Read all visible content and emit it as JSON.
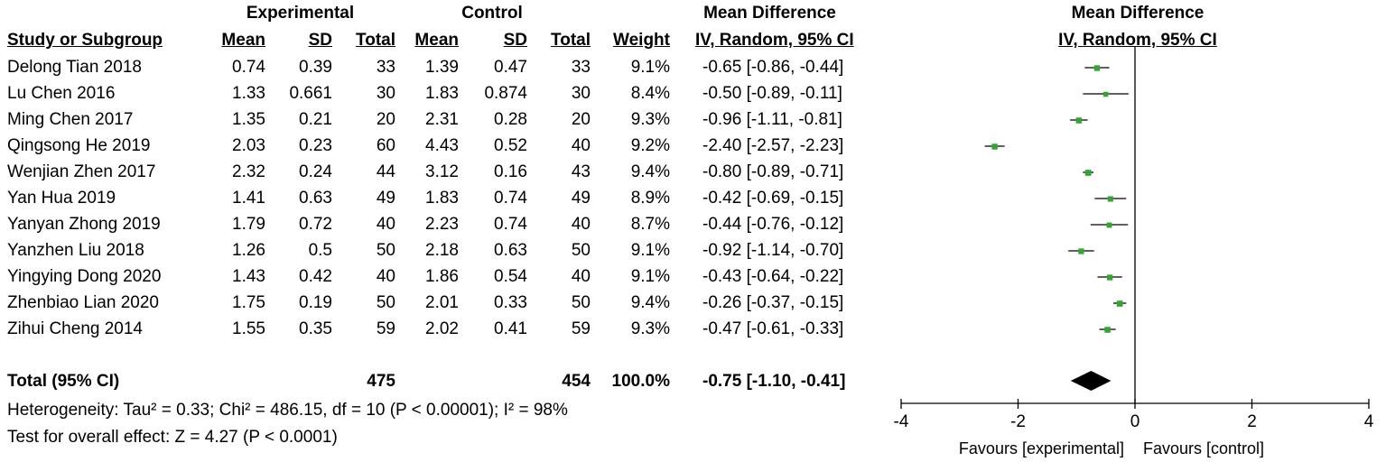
{
  "headers": {
    "group_experimental": "Experimental",
    "group_control": "Control",
    "effect_title_left": "Mean Difference",
    "effect_title_right": "Mean Difference",
    "study": "Study or Subgroup",
    "mean_e": "Mean",
    "sd_e": "SD",
    "total_e": "Total",
    "mean_c": "Mean",
    "sd_c": "SD",
    "total_c": "Total",
    "weight": "Weight",
    "ci_left": "IV, Random, 95% CI",
    "ci_right": "IV, Random, 95% CI"
  },
  "rows": [
    {
      "study": "Delong Tian 2018",
      "mean_e": "0.74",
      "sd_e": "0.39",
      "total_e": "33",
      "mean_c": "1.39",
      "sd_c": "0.47",
      "total_c": "33",
      "weight": "9.1%",
      "ci": "-0.65 [-0.86, -0.44]"
    },
    {
      "study": "Lu Chen 2016",
      "mean_e": "1.33",
      "sd_e": "0.661",
      "total_e": "30",
      "mean_c": "1.83",
      "sd_c": "0.874",
      "total_c": "30",
      "weight": "8.4%",
      "ci": "-0.50 [-0.89, -0.11]"
    },
    {
      "study": "Ming Chen 2017",
      "mean_e": "1.35",
      "sd_e": "0.21",
      "total_e": "20",
      "mean_c": "2.31",
      "sd_c": "0.28",
      "total_c": "20",
      "weight": "9.3%",
      "ci": "-0.96 [-1.11, -0.81]"
    },
    {
      "study": "Qingsong He 2019",
      "mean_e": "2.03",
      "sd_e": "0.23",
      "total_e": "60",
      "mean_c": "4.43",
      "sd_c": "0.52",
      "total_c": "40",
      "weight": "9.2%",
      "ci": "-2.40 [-2.57, -2.23]"
    },
    {
      "study": "Wenjian Zhen 2017",
      "mean_e": "2.32",
      "sd_e": "0.24",
      "total_e": "44",
      "mean_c": "3.12",
      "sd_c": "0.16",
      "total_c": "43",
      "weight": "9.4%",
      "ci": "-0.80 [-0.89, -0.71]"
    },
    {
      "study": "Yan Hua 2019",
      "mean_e": "1.41",
      "sd_e": "0.63",
      "total_e": "49",
      "mean_c": "1.83",
      "sd_c": "0.74",
      "total_c": "49",
      "weight": "8.9%",
      "ci": "-0.42 [-0.69, -0.15]"
    },
    {
      "study": "Yanyan Zhong 2019",
      "mean_e": "1.79",
      "sd_e": "0.72",
      "total_e": "40",
      "mean_c": "2.23",
      "sd_c": "0.74",
      "total_c": "40",
      "weight": "8.7%",
      "ci": "-0.44 [-0.76, -0.12]"
    },
    {
      "study": "Yanzhen Liu 2018",
      "mean_e": "1.26",
      "sd_e": "0.5",
      "total_e": "50",
      "mean_c": "2.18",
      "sd_c": "0.63",
      "total_c": "50",
      "weight": "9.1%",
      "ci": "-0.92 [-1.14, -0.70]"
    },
    {
      "study": "Yingying Dong 2020",
      "mean_e": "1.43",
      "sd_e": "0.42",
      "total_e": "40",
      "mean_c": "1.86",
      "sd_c": "0.54",
      "total_c": "40",
      "weight": "9.1%",
      "ci": "-0.43 [-0.64, -0.22]"
    },
    {
      "study": "Zhenbiao Lian 2020",
      "mean_e": "1.75",
      "sd_e": "0.19",
      "total_e": "50",
      "mean_c": "2.01",
      "sd_c": "0.33",
      "total_c": "50",
      "weight": "9.4%",
      "ci": "-0.26 [-0.37, -0.15]"
    },
    {
      "study": "Zihui Cheng 2014",
      "mean_e": "1.55",
      "sd_e": "0.35",
      "total_e": "59",
      "mean_c": "2.02",
      "sd_c": "0.41",
      "total_c": "59",
      "weight": "9.3%",
      "ci": "-0.47 [-0.61, -0.33]"
    }
  ],
  "total": {
    "label": "Total (95% CI)",
    "total_e": "475",
    "total_c": "454",
    "weight": "100.0%",
    "ci": "-0.75 [-1.10, -0.41]"
  },
  "footnotes": {
    "heterogeneity": "Heterogeneity: Tau² = 0.33; Chi² = 486.15, df = 10 (P < 0.00001); I² = 98%",
    "overall_effect": "Test for overall effect: Z = 4.27 (P < 0.0001)"
  },
  "axis": {
    "favours_left": "Favours [experimental]",
    "favours_right": "Favours [control]"
  },
  "colors": {
    "study_marker": "#33a532",
    "summary_diamond": "#000000"
  },
  "chart_data": {
    "type": "scatter",
    "subtype": "forest-plot",
    "title": "Mean Difference",
    "xlabel": "",
    "xlim": [
      -4,
      4
    ],
    "xticks": [
      -4,
      -2,
      0,
      2,
      4
    ],
    "reference_line": 0,
    "studies": [
      {
        "name": "Delong Tian 2018",
        "md": -0.65,
        "lo": -0.86,
        "hi": -0.44,
        "weight": 9.1
      },
      {
        "name": "Lu Chen 2016",
        "md": -0.5,
        "lo": -0.89,
        "hi": -0.11,
        "weight": 8.4
      },
      {
        "name": "Ming Chen 2017",
        "md": -0.96,
        "lo": -1.11,
        "hi": -0.81,
        "weight": 9.3
      },
      {
        "name": "Qingsong He 2019",
        "md": -2.4,
        "lo": -2.57,
        "hi": -2.23,
        "weight": 9.2
      },
      {
        "name": "Wenjian Zhen 2017",
        "md": -0.8,
        "lo": -0.89,
        "hi": -0.71,
        "weight": 9.4
      },
      {
        "name": "Yan Hua 2019",
        "md": -0.42,
        "lo": -0.69,
        "hi": -0.15,
        "weight": 8.9
      },
      {
        "name": "Yanyan Zhong 2019",
        "md": -0.44,
        "lo": -0.76,
        "hi": -0.12,
        "weight": 8.7
      },
      {
        "name": "Yanzhen Liu 2018",
        "md": -0.92,
        "lo": -1.14,
        "hi": -0.7,
        "weight": 9.1
      },
      {
        "name": "Yingying Dong 2020",
        "md": -0.43,
        "lo": -0.64,
        "hi": -0.22,
        "weight": 9.1
      },
      {
        "name": "Zhenbiao Lian 2020",
        "md": -0.26,
        "lo": -0.37,
        "hi": -0.15,
        "weight": 9.4
      },
      {
        "name": "Zihui Cheng 2014",
        "md": -0.47,
        "lo": -0.61,
        "hi": -0.33,
        "weight": 9.3
      }
    ],
    "summary": {
      "md": -0.75,
      "lo": -1.1,
      "hi": -0.41
    },
    "grid": false,
    "legend": "none"
  }
}
